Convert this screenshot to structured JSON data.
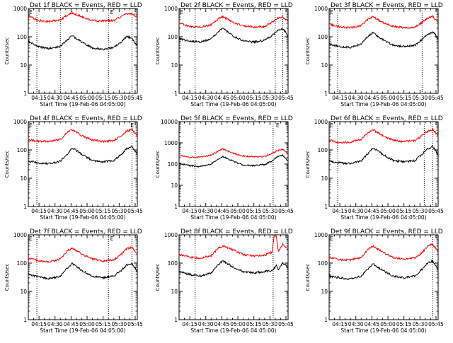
{
  "colors": {
    "events": "#000000",
    "lld": "#ff0000",
    "axes": "#000000",
    "background": "#ffffff"
  },
  "common": {
    "xlabel": "Start Time (19-Feb-06 04:05:00)",
    "ylabel": "Counts/sec",
    "xticks": [
      "04:15",
      "04:30",
      "04:45",
      "05:00",
      "05:15",
      "05:30",
      "05:45"
    ],
    "yticks": [
      "1",
      "10",
      "100",
      "1000"
    ],
    "marker_label": "E"
  },
  "chart_data": [
    {
      "type": "line",
      "title": "Det 1f BLACK = Events, RED = LLD",
      "xlabel": "Start Time (19-Feb-06 04:05:00)",
      "ylabel": "Counts/sec",
      "xlim": [
        "04:05",
        "05:47"
      ],
      "ylim": [
        1,
        1000
      ],
      "yscale": "log",
      "yticks": [
        "1",
        "10",
        "100",
        "1000"
      ],
      "grid": false,
      "markers": {
        "times": [
          "04:13",
          "04:35",
          "05:20",
          "05:42"
        ],
        "e_labels": [
          "04:05",
          "05:21"
        ]
      },
      "series": [
        {
          "name": "Events",
          "color": "#000000",
          "x": [
            "04:05",
            "04:15",
            "04:25",
            "04:35",
            "04:42",
            "04:46",
            "04:55",
            "05:05",
            "05:15",
            "05:25",
            "05:32",
            "05:37",
            "05:42",
            "05:45",
            "05:47"
          ],
          "values": [
            70,
            45,
            38,
            45,
            80,
            110,
            65,
            40,
            36,
            42,
            65,
            100,
            90,
            60,
            50
          ]
        },
        {
          "name": "LLD",
          "color": "#ff0000",
          "x": [
            "04:05",
            "04:15",
            "04:25",
            "04:35",
            "04:42",
            "04:46",
            "04:55",
            "05:05",
            "05:15",
            "05:25",
            "05:32",
            "05:37",
            "05:42",
            "05:45",
            "05:47"
          ],
          "values": [
            550,
            370,
            350,
            390,
            600,
            700,
            520,
            370,
            360,
            380,
            520,
            640,
            660,
            560,
            500
          ]
        }
      ]
    },
    {
      "type": "line",
      "title": "Det 2f BLACK = Events, RED = LLD",
      "xlabel": "Start Time (19-Feb-06 04:05:00)",
      "ylabel": "Counts/sec",
      "xlim": [
        "04:05",
        "05:47"
      ],
      "ylim": [
        1,
        1000
      ],
      "yscale": "log",
      "yticks": [
        "1",
        "10",
        "100",
        "1000"
      ],
      "grid": false,
      "markers": {
        "times": [
          "04:20",
          "05:35",
          "05:42"
        ],
        "e_labels": [
          "04:05"
        ]
      },
      "series": [
        {
          "name": "Events",
          "color": "#000000",
          "x": [
            "04:05",
            "04:15",
            "04:25",
            "04:35",
            "04:42",
            "04:46",
            "04:55",
            "05:05",
            "05:15",
            "05:25",
            "05:32",
            "05:37",
            "05:42",
            "05:45",
            "05:47"
          ],
          "values": [
            85,
            70,
            65,
            85,
            150,
            200,
            110,
            70,
            65,
            75,
            110,
            170,
            190,
            140,
            100
          ]
        },
        {
          "name": "LLD",
          "color": "#ff0000",
          "x": [
            "04:05",
            "04:15",
            "04:25",
            "04:35",
            "04:42",
            "04:46",
            "04:55",
            "05:05",
            "05:15",
            "05:25",
            "05:32",
            "05:37",
            "05:42",
            "05:45",
            "05:47"
          ],
          "values": [
            300,
            230,
            220,
            260,
            450,
            520,
            330,
            240,
            220,
            230,
            330,
            460,
            500,
            400,
            350
          ]
        }
      ]
    },
    {
      "type": "line",
      "title": "Det 3f BLACK = Events, RED = LLD",
      "xlabel": "Start Time (19-Feb-06 04:05:00)",
      "ylabel": "Counts/sec",
      "xlim": [
        "04:05",
        "05:47"
      ],
      "ylim": [
        1,
        1000
      ],
      "yscale": "log",
      "yticks": [
        "1",
        "10",
        "100",
        "1000"
      ],
      "grid": false,
      "markers": {
        "times": [
          "04:13",
          "05:32"
        ],
        "e_labels": [
          "04:05"
        ]
      },
      "series": [
        {
          "name": "Events",
          "color": "#000000",
          "x": [
            "04:05",
            "04:15",
            "04:25",
            "04:35",
            "04:42",
            "04:46",
            "04:55",
            "05:05",
            "05:15",
            "05:25",
            "05:32",
            "05:37",
            "05:42",
            "05:45",
            "05:47"
          ],
          "values": [
            55,
            45,
            42,
            55,
            110,
            140,
            80,
            50,
            45,
            50,
            80,
            120,
            150,
            110,
            80
          ]
        },
        {
          "name": "LLD",
          "color": "#ff0000",
          "x": [
            "04:05",
            "04:15",
            "04:25",
            "04:35",
            "04:42",
            "04:46",
            "04:55",
            "05:05",
            "05:15",
            "05:25",
            "05:32",
            "05:37",
            "05:42",
            "05:45",
            "05:47"
          ],
          "values": [
            280,
            220,
            210,
            250,
            430,
            520,
            320,
            230,
            210,
            220,
            320,
            460,
            520,
            380,
            330
          ]
        }
      ]
    },
    {
      "type": "line",
      "title": "Det 4f BLACK = Events, RED = LLD",
      "xlabel": "Start Time (19-Feb-06 04:05:00)",
      "ylabel": "Counts/sec",
      "xlim": [
        "04:05",
        "05:47"
      ],
      "ylim": [
        1,
        1000
      ],
      "yscale": "log",
      "yticks": [
        "1",
        "10",
        "100",
        "1000"
      ],
      "grid": false,
      "markers": {
        "times": [
          "04:13",
          "05:42"
        ],
        "e_labels": [
          "04:05",
          "05:40"
        ]
      },
      "series": [
        {
          "name": "Events",
          "color": "#000000",
          "x": [
            "04:05",
            "04:15",
            "04:25",
            "04:35",
            "04:42",
            "04:46",
            "04:55",
            "05:05",
            "05:15",
            "05:25",
            "05:32",
            "05:37",
            "05:42",
            "05:45",
            "05:47"
          ],
          "values": [
            40,
            35,
            33,
            40,
            75,
            120,
            70,
            42,
            38,
            42,
            70,
            110,
            130,
            90,
            65
          ]
        },
        {
          "name": "LLD",
          "color": "#ff0000",
          "x": [
            "04:05",
            "04:15",
            "04:25",
            "04:35",
            "04:42",
            "04:46",
            "04:55",
            "05:05",
            "05:15",
            "05:25",
            "05:32",
            "05:37",
            "05:42",
            "05:45",
            "05:47"
          ],
          "values": [
            230,
            200,
            200,
            240,
            420,
            520,
            320,
            220,
            200,
            210,
            320,
            460,
            520,
            400,
            320
          ]
        }
      ]
    },
    {
      "type": "line",
      "title": "Det 5f BLACK = Events, RED = LLD",
      "xlabel": "Start Time (19-Feb-06 04:05:00)",
      "ylabel": "Counts/sec",
      "xlim": [
        "04:05",
        "05:47"
      ],
      "ylim": [
        1,
        10000
      ],
      "yscale": "log",
      "yticks": [
        "1",
        "10",
        "100",
        "1000",
        "10000"
      ],
      "grid": false,
      "markers": {
        "times": [
          "04:20",
          "05:33"
        ],
        "e_labels": [
          "05:35"
        ]
      },
      "series": [
        {
          "name": "Events",
          "color": "#000000",
          "x": [
            "04:05",
            "04:15",
            "04:25",
            "04:35",
            "04:42",
            "04:46",
            "04:55",
            "05:05",
            "05:15",
            "05:25",
            "05:32",
            "05:37",
            "05:42",
            "05:45",
            "05:47"
          ],
          "values": [
            110,
            85,
            75,
            100,
            180,
            230,
            140,
            90,
            85,
            95,
            140,
            220,
            260,
            180,
            140
          ]
        },
        {
          "name": "LLD",
          "color": "#ff0000",
          "x": [
            "04:05",
            "04:15",
            "04:25",
            "04:35",
            "04:42",
            "04:46",
            "04:55",
            "05:05",
            "05:15",
            "05:25",
            "05:32",
            "05:37",
            "05:42",
            "05:45",
            "05:47"
          ],
          "values": [
            260,
            210,
            210,
            260,
            430,
            520,
            330,
            240,
            220,
            230,
            320,
            430,
            500,
            380,
            320
          ]
        }
      ]
    },
    {
      "type": "line",
      "title": "Det 6f BLACK = Events, RED = LLD",
      "xlabel": "Start Time (19-Feb-06 04:05:00)",
      "ylabel": "Counts/sec",
      "xlim": [
        "04:05",
        "05:47"
      ],
      "ylim": [
        1,
        1000
      ],
      "yscale": "log",
      "yticks": [
        "1",
        "10",
        "100",
        "1000"
      ],
      "grid": false,
      "markers": {
        "times": [
          "04:13",
          "05:34",
          "05:42"
        ],
        "e_labels": [
          "04:05"
        ]
      },
      "series": [
        {
          "name": "Events",
          "color": "#000000",
          "x": [
            "04:05",
            "04:15",
            "04:25",
            "04:35",
            "04:42",
            "04:46",
            "04:55",
            "05:05",
            "05:15",
            "05:25",
            "05:32",
            "05:37",
            "05:42",
            "05:45",
            "05:47"
          ],
          "values": [
            40,
            35,
            33,
            42,
            80,
            120,
            70,
            42,
            38,
            42,
            70,
            110,
            130,
            90,
            65
          ]
        },
        {
          "name": "LLD",
          "color": "#ff0000",
          "x": [
            "04:05",
            "04:15",
            "04:25",
            "04:35",
            "04:42",
            "04:46",
            "04:55",
            "05:05",
            "05:15",
            "05:25",
            "05:32",
            "05:37",
            "05:42",
            "05:45",
            "05:47"
          ],
          "values": [
            220,
            180,
            190,
            240,
            420,
            520,
            320,
            220,
            200,
            210,
            320,
            460,
            520,
            380,
            300
          ]
        }
      ]
    },
    {
      "type": "line",
      "title": "Det 7f BLACK = Events, RED = LLD",
      "xlabel": "Start Time (19-Feb-06 04:05:00)",
      "ylabel": "Counts/sec",
      "xlim": [
        "04:05",
        "05:47"
      ],
      "ylim": [
        1,
        1000
      ],
      "yscale": "log",
      "yticks": [
        "1",
        "10",
        "100",
        "1000"
      ],
      "grid": false,
      "markers": {
        "times": [
          "04:13",
          "05:20",
          "05:42"
        ],
        "e_labels": [
          "04:05",
          "05:21"
        ]
      },
      "series": [
        {
          "name": "Events",
          "color": "#000000",
          "x": [
            "04:05",
            "04:15",
            "04:25",
            "04:35",
            "04:42",
            "04:46",
            "04:55",
            "05:05",
            "05:15",
            "05:25",
            "05:32",
            "05:37",
            "05:42",
            "05:45",
            "05:47"
          ],
          "values": [
            40,
            32,
            28,
            35,
            70,
            95,
            55,
            35,
            30,
            35,
            55,
            85,
            95,
            65,
            50
          ]
        },
        {
          "name": "LLD",
          "color": "#ff0000",
          "x": [
            "04:05",
            "04:15",
            "04:25",
            "04:35",
            "04:42",
            "04:46",
            "04:55",
            "05:05",
            "05:15",
            "05:25",
            "05:32",
            "05:37",
            "05:42",
            "05:45",
            "05:47"
          ],
          "values": [
            150,
            120,
            110,
            140,
            280,
            340,
            210,
            140,
            120,
            130,
            200,
            320,
            360,
            250,
            200
          ]
        }
      ]
    },
    {
      "type": "line",
      "title": "Det 8f BLACK = Events, RED = LLD",
      "xlabel": "Start Time (19-Feb-06 04:05:00)",
      "ylabel": "Counts/sec",
      "xlim": [
        "04:05",
        "05:47"
      ],
      "ylim": [
        1,
        1000
      ],
      "yscale": "log",
      "yticks": [
        "1",
        "10",
        "100",
        "1000"
      ],
      "grid": false,
      "markers": {
        "times": [
          "04:20",
          "05:33"
        ],
        "e_labels": []
      },
      "series": [
        {
          "name": "Events",
          "color": "#000000",
          "x": [
            "04:05",
            "04:15",
            "04:25",
            "04:35",
            "04:42",
            "04:46",
            "04:55",
            "05:05",
            "05:15",
            "05:25",
            "05:32",
            "05:36",
            "05:38",
            "05:42",
            "05:45",
            "05:47"
          ],
          "values": [
            50,
            40,
            35,
            45,
            90,
            120,
            75,
            50,
            45,
            50,
            55,
            80,
            60,
            100,
            80,
            65
          ]
        },
        {
          "name": "LLD",
          "color": "#ff0000",
          "x": [
            "04:05",
            "04:15",
            "04:25",
            "04:35",
            "04:42",
            "04:46",
            "04:55",
            "05:05",
            "05:15",
            "05:25",
            "05:32",
            "05:34",
            "05:36",
            "05:38",
            "05:40",
            "05:42",
            "05:45",
            "05:47"
          ],
          "values": [
            200,
            160,
            150,
            180,
            350,
            400,
            300,
            200,
            180,
            190,
            250,
            900,
            900,
            250,
            350,
            450,
            350,
            300
          ]
        }
      ]
    },
    {
      "type": "line",
      "title": "Det 9f BLACK = Events, RED = LLD",
      "xlabel": "Start Time (19-Feb-06 04:05:00)",
      "ylabel": "Counts/sec",
      "xlim": [
        "04:05",
        "05:47"
      ],
      "ylim": [
        1,
        1000
      ],
      "yscale": "log",
      "yticks": [
        "1",
        "10",
        "100",
        "1000"
      ],
      "grid": false,
      "markers": {
        "times": [
          "05:42"
        ],
        "e_labels": [
          "04:05"
        ]
      },
      "series": [
        {
          "name": "Events",
          "color": "#000000",
          "x": [
            "04:05",
            "04:15",
            "04:25",
            "04:35",
            "04:42",
            "04:46",
            "04:55",
            "05:05",
            "05:15",
            "05:25",
            "05:32",
            "05:37",
            "05:42",
            "05:45",
            "05:47"
          ],
          "values": [
            35,
            30,
            28,
            35,
            65,
            95,
            55,
            35,
            30,
            35,
            60,
            100,
            120,
            80,
            55
          ]
        },
        {
          "name": "LLD",
          "color": "#ff0000",
          "x": [
            "04:05",
            "04:15",
            "04:25",
            "04:35",
            "04:42",
            "04:46",
            "04:55",
            "05:05",
            "05:15",
            "05:25",
            "05:32",
            "05:37",
            "05:42",
            "05:45",
            "05:47"
          ],
          "values": [
            160,
            130,
            130,
            160,
            320,
            400,
            250,
            160,
            140,
            150,
            230,
            400,
            460,
            320,
            250
          ]
        }
      ]
    }
  ]
}
